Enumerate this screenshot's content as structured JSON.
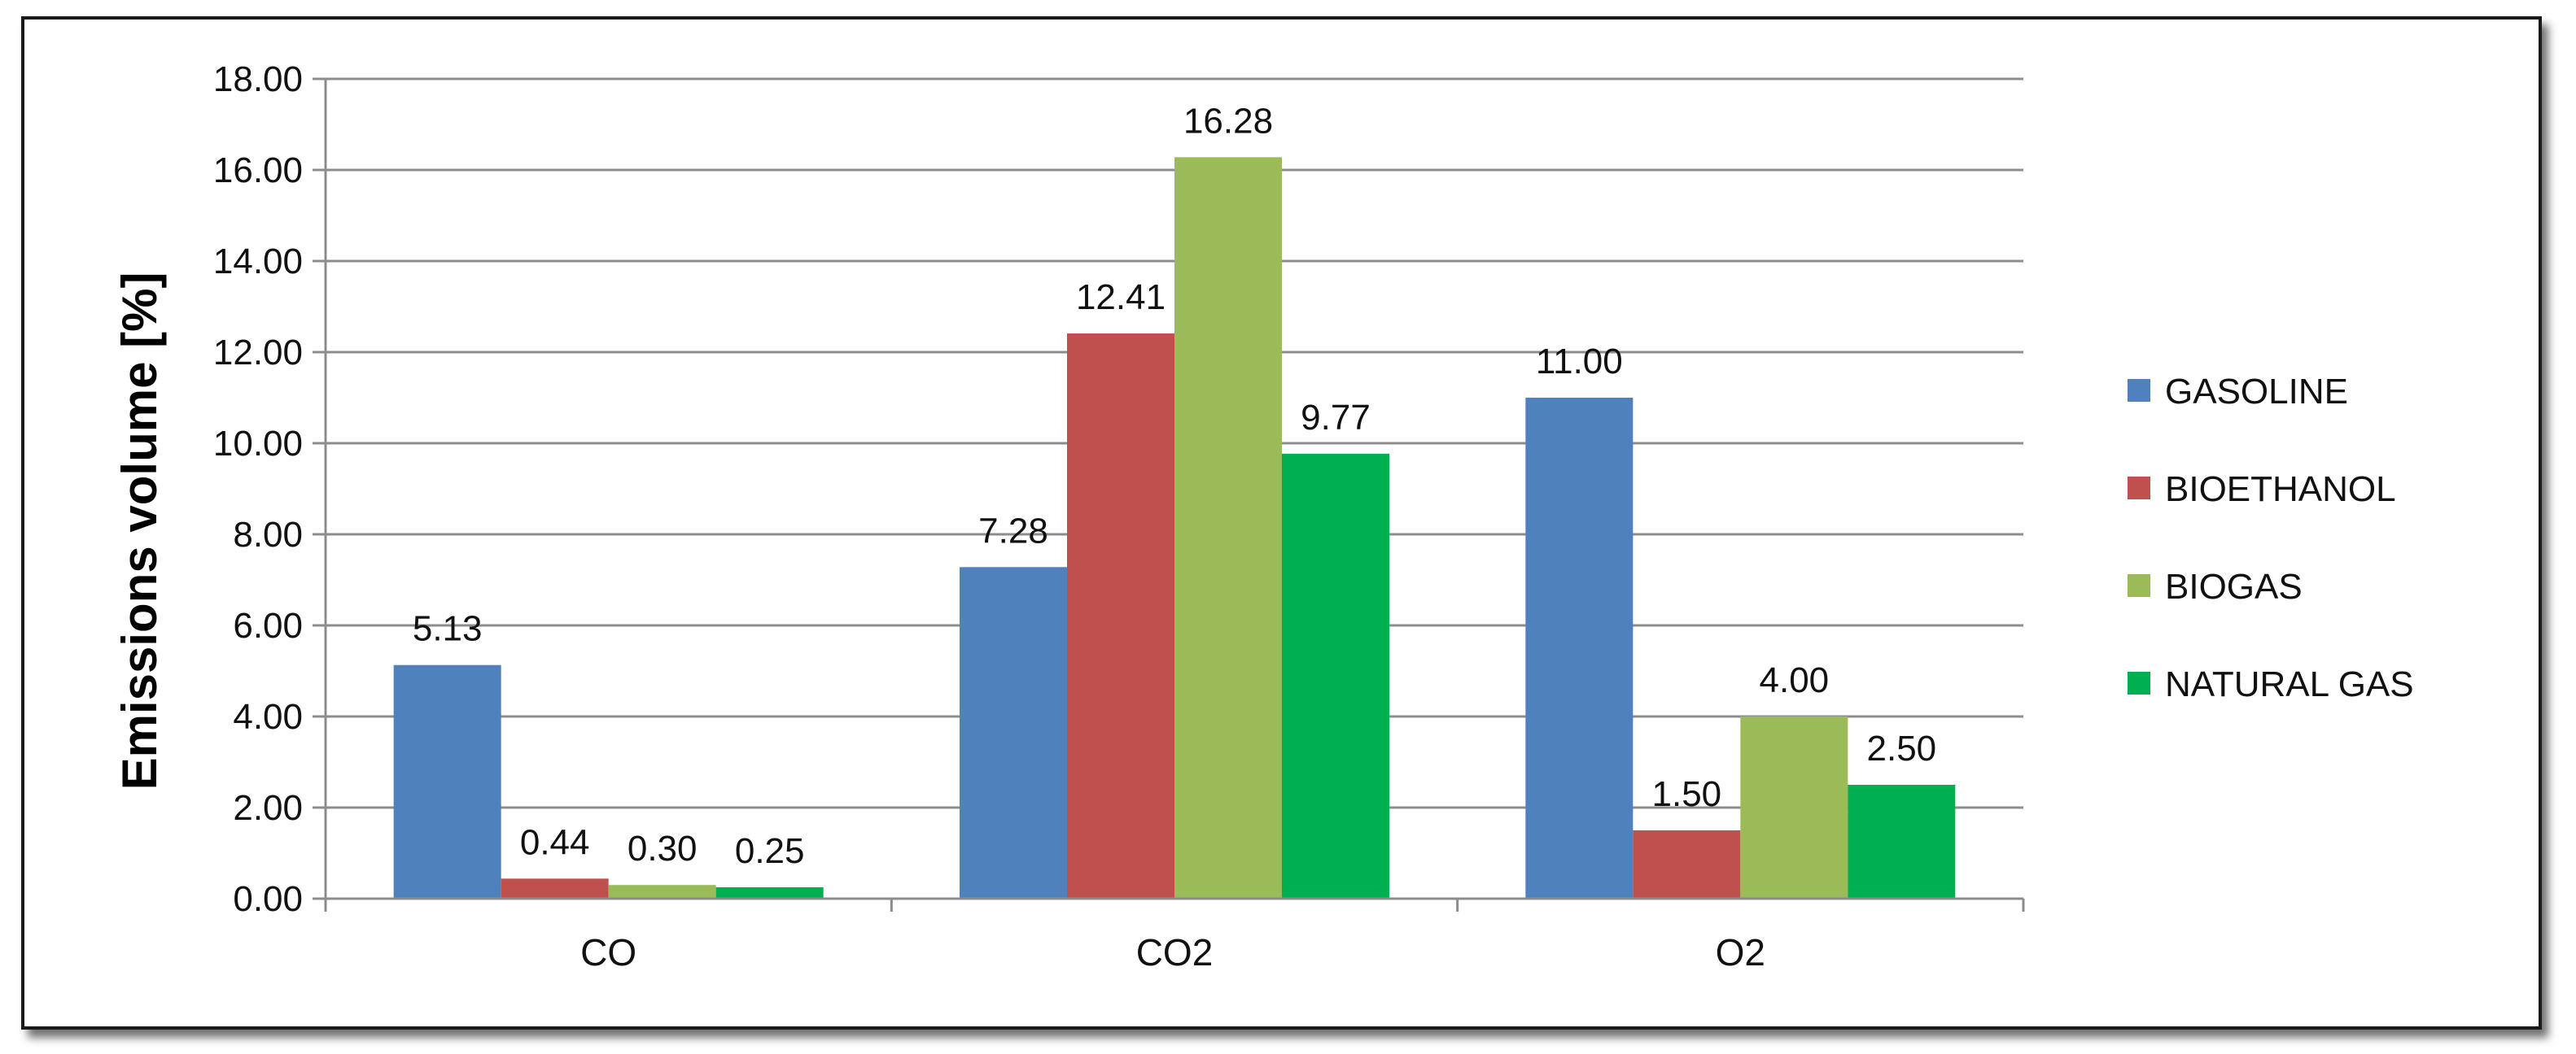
{
  "chart_data": {
    "type": "bar",
    "categories": [
      "CO",
      "CO2",
      "O2"
    ],
    "series": [
      {
        "name": "GASOLINE",
        "color": "#4F81BD",
        "values": [
          5.13,
          7.28,
          11.0
        ],
        "labels": [
          "5.13",
          "7.28",
          "11.00"
        ]
      },
      {
        "name": "BIOETHANOL",
        "color": "#C0504D",
        "values": [
          0.44,
          12.41,
          1.5
        ],
        "labels": [
          "0.44",
          "12.41",
          "1.50"
        ]
      },
      {
        "name": "BIOGAS",
        "color": "#9BBB59",
        "values": [
          0.3,
          16.28,
          4.0
        ],
        "labels": [
          "0.30",
          "16.28",
          "4.00"
        ]
      },
      {
        "name": "NATURAL GAS",
        "color": "#00B050",
        "values": [
          0.25,
          9.77,
          2.5
        ],
        "labels": [
          "0.25",
          "9.77",
          "2.50"
        ]
      }
    ],
    "ylabel": "Emissions volume [%]",
    "xlabel": "",
    "ylim": [
      0,
      18
    ],
    "yticks": [
      "0.00",
      "2.00",
      "4.00",
      "6.00",
      "8.00",
      "10.00",
      "12.00",
      "14.00",
      "16.00",
      "18.00"
    ],
    "grid": "horizontal",
    "legend_position": "right"
  }
}
